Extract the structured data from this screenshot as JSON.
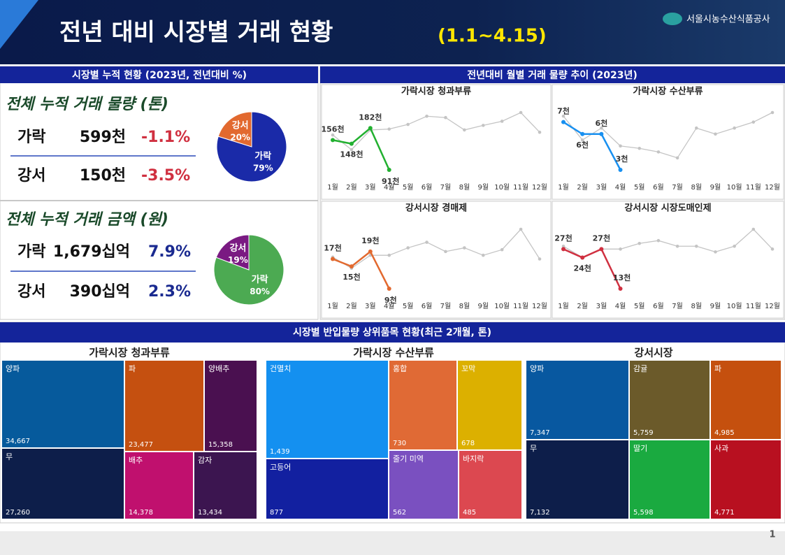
{
  "header": {
    "title": "전년 대비 시장별 거래 현황",
    "subtitle": "(1.1~4.15)",
    "organization": "서울시농수산식품공사"
  },
  "left_panel": {
    "title": "시장별 누적 현황 (2023년, 전년대비 %)",
    "sections": [
      {
        "title": "전체 누적 거래 물량 (톤)",
        "rows": [
          {
            "market": "가락",
            "amount": "599천",
            "change": "-1.1%"
          },
          {
            "market": "강서",
            "amount": "150천",
            "change": "-3.5%"
          }
        ],
        "chart": {
          "type": "pie",
          "categories": [
            "가락",
            "강서"
          ],
          "values": [
            79,
            20
          ],
          "value_labels": [
            "79%",
            "20%"
          ],
          "colors": [
            "#1a2aa8",
            "#e2692f"
          ]
        }
      },
      {
        "title": "전체 누적 거래 금액 (원)",
        "rows": [
          {
            "market": "가락",
            "amount": "1,679십억",
            "change": "7.9%"
          },
          {
            "market": "강서",
            "amount": "390십억",
            "change": "2.3%"
          }
        ],
        "chart": {
          "type": "pie",
          "categories": [
            "가락",
            "강서"
          ],
          "values": [
            80,
            19
          ],
          "value_labels": [
            "80%",
            "19%"
          ],
          "colors": [
            "#4caa52",
            "#7a1a82"
          ]
        }
      }
    ]
  },
  "right_panel": {
    "title": "전년대비 월별 거래 물량 추이 (2023년)",
    "charts": [
      {
        "type": "line",
        "title": "가락시장 청과부류",
        "categories": [
          "1월",
          "2월",
          "3월",
          "4월",
          "5월",
          "6월",
          "7월",
          "8월",
          "9월",
          "10월",
          "11월",
          "12월"
        ],
        "series": [
          {
            "color": "#c4c4c4",
            "values": [
              167,
              135,
              178,
              180,
              190,
              208,
              205,
              178,
              188,
              197,
              216,
              173
            ]
          },
          {
            "color": "#22b030",
            "values": [
              156,
              148,
              182,
              91,
              null,
              null,
              null,
              null,
              null,
              null,
              null,
              null
            ],
            "value_labels": [
              "156천",
              "148천",
              "182천",
              "91천",
              null,
              null,
              null,
              null,
              null,
              null,
              null,
              null
            ]
          }
        ]
      },
      {
        "type": "line",
        "title": "가락시장 수산부류",
        "categories": [
          "1월",
          "2월",
          "3월",
          "4월",
          "5월",
          "6월",
          "7월",
          "8월",
          "9월",
          "10월",
          "11월",
          "12월"
        ],
        "series": [
          {
            "color": "#c4c4c4",
            "values": [
              7.5,
              5.5,
              6.5,
              5,
              4.8,
              4.5,
              4,
              6.5,
              6,
              6.5,
              7,
              7.8
            ]
          },
          {
            "color": "#1890f0",
            "values": [
              7,
              6,
              6,
              3,
              null,
              null,
              null,
              null,
              null,
              null,
              null,
              null
            ],
            "value_labels": [
              "7천",
              "6천",
              "6천",
              "3천",
              null,
              null,
              null,
              null,
              null,
              null,
              null,
              null
            ]
          }
        ]
      },
      {
        "type": "line",
        "title": "강서시장 경매제",
        "categories": [
          "1월",
          "2월",
          "3월",
          "4월",
          "5월",
          "6월",
          "7월",
          "8월",
          "9월",
          "10월",
          "11월",
          "12월"
        ],
        "series": [
          {
            "color": "#c4c4c4",
            "values": [
              17.5,
              14.5,
              18,
              18,
              20,
              21.5,
              19,
              20,
              18,
              19.5,
              25,
              17
            ]
          },
          {
            "color": "#e2692f",
            "values": [
              17,
              15,
              19,
              9,
              null,
              null,
              null,
              null,
              null,
              null,
              null,
              null
            ],
            "value_labels": [
              "17천",
              "15천",
              "19천",
              "9천",
              null,
              null,
              null,
              null,
              null,
              null,
              null,
              null
            ]
          }
        ]
      },
      {
        "type": "line",
        "title": "강서시장 시장도매인제",
        "categories": [
          "1월",
          "2월",
          "3월",
          "4월",
          "5월",
          "6월",
          "7월",
          "8월",
          "9월",
          "10월",
          "11월",
          "12월"
        ],
        "series": [
          {
            "color": "#c4c4c4",
            "values": [
              28,
              24,
              27,
              27,
              29,
              30,
              28,
              28,
              26,
              28,
              34,
              27
            ]
          },
          {
            "color": "#d03040",
            "values": [
              27,
              24,
              27,
              13,
              null,
              null,
              null,
              null,
              null,
              null,
              null,
              null
            ],
            "value_labels": [
              "27천",
              "24천",
              "27천",
              "13천",
              null,
              null,
              null,
              null,
              null,
              null,
              null,
              null
            ]
          }
        ]
      }
    ]
  },
  "bottom_panel": {
    "title": "시장별 반입물량 상위품목 현황(최근 2개월, 톤)",
    "treemaps": [
      {
        "type": "treemap",
        "title": "가락시장 청과부류",
        "categories": [
          "양파",
          "무",
          "파",
          "양배추",
          "배추",
          "감자"
        ],
        "values": [
          34667,
          27260,
          23477,
          15358,
          14378,
          13434
        ],
        "value_labels": [
          "34,667",
          "27,260",
          "23,477",
          "15,358",
          "14,378",
          "13,434"
        ],
        "colors": [
          "#065a9c",
          "#0d1e4a",
          "#c55010",
          "#4a1050",
          "#c0106e",
          "#3c1550"
        ]
      },
      {
        "type": "treemap",
        "title": "가락시장 수산부류",
        "categories": [
          "건멸치",
          "고등어",
          "홍합",
          "꼬막",
          "줄기 미역",
          "바지락"
        ],
        "values": [
          1439,
          877,
          730,
          678,
          562,
          485
        ],
        "value_labels": [
          "1,439",
          "877",
          "730",
          "678",
          "562",
          "485"
        ],
        "colors": [
          "#1490f0",
          "#1220a0",
          "#e06a35",
          "#dcb000",
          "#7a50c0",
          "#dc4850"
        ]
      },
      {
        "type": "treemap",
        "title": "강서시장",
        "categories": [
          "양파",
          "무",
          "감귤",
          "딸기",
          "파",
          "사과"
        ],
        "values": [
          7347,
          7132,
          5759,
          5598,
          4985,
          4771
        ],
        "value_labels": [
          "7,347",
          "7,132",
          "5,759",
          "5,598",
          "4,985",
          "4,771"
        ],
        "colors": [
          "#0858a0",
          "#0d1e4a",
          "#6b5a2a",
          "#1aaa40",
          "#c5500e",
          "#b81020"
        ]
      }
    ]
  },
  "page_number": "1"
}
